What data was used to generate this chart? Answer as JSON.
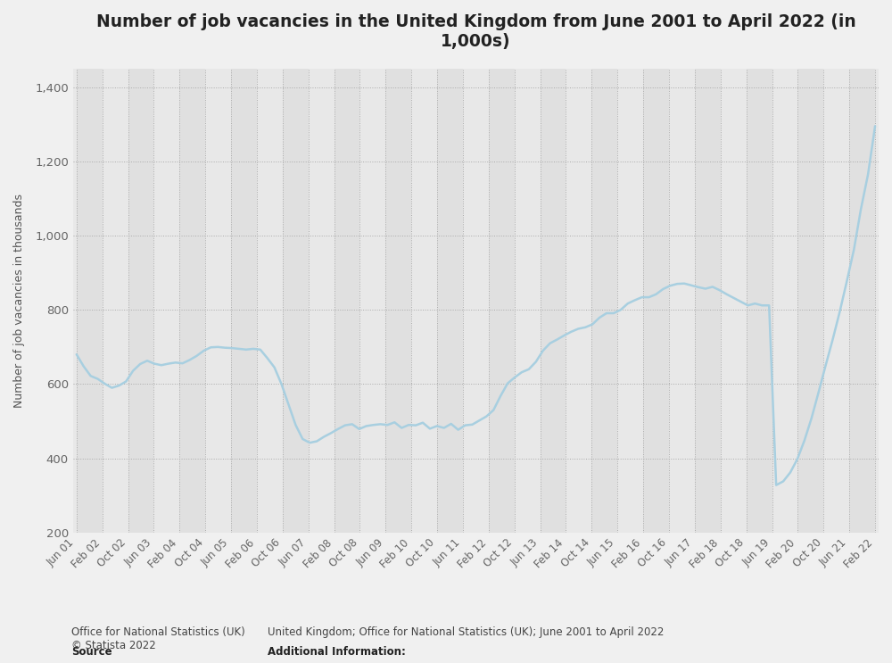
{
  "title": "Number of job vacancies in the United Kingdom from June 2001 to April 2022 (in\n1,000s)",
  "ylabel": "Number of job vacancies in thousands",
  "ylim": [
    200,
    1450
  ],
  "yticks": [
    200,
    400,
    600,
    800,
    1000,
    1200,
    1400
  ],
  "line_color": "#a8cfe0",
  "line_width": 1.8,
  "bg_color": "#f0f0f0",
  "plot_bg_color": "#e8e8e8",
  "source_label": "Source",
  "source_body": "Office for National Statistics (UK)\n© Statista 2022",
  "additional_label": "Additional Information:",
  "additional_body": "United Kingdom; Office for National Statistics (UK); June 2001 to April 2022",
  "x_labels": [
    "Jun 01",
    "Feb 02",
    "Oct 02",
    "Jun 03",
    "Feb 04",
    "Oct 04",
    "Jun 05",
    "Feb 06",
    "Oct 06",
    "Jun 07",
    "Feb 08",
    "Oct 08",
    "Jun 09",
    "Feb 10",
    "Oct 10",
    "Jun 11",
    "Feb 12",
    "Oct 12",
    "Jun 13",
    "Feb 14",
    "Oct 14",
    "Jun 15",
    "Feb 16",
    "Oct 16",
    "Jun 17",
    "Feb 18",
    "Oct 18",
    "Jun 19",
    "Feb 20",
    "Oct 20",
    "Jun 21",
    "Feb 22"
  ],
  "y_vals": [
    680,
    648,
    622,
    614,
    601,
    590,
    596,
    607,
    636,
    654,
    663,
    655,
    651,
    655,
    658,
    656,
    665,
    676,
    690,
    699,
    700,
    698,
    697,
    695,
    693,
    695,
    693,
    670,
    645,
    600,
    545,
    490,
    452,
    442,
    446,
    458,
    468,
    479,
    489,
    492,
    479,
    487,
    490,
    492,
    490,
    497,
    482,
    490,
    489,
    496,
    480,
    487,
    482,
    493,
    477,
    489,
    491,
    502,
    513,
    530,
    568,
    602,
    618,
    632,
    640,
    660,
    690,
    710,
    720,
    731,
    741,
    749,
    753,
    761,
    779,
    791,
    791,
    800,
    817,
    826,
    834,
    834,
    842,
    856,
    865,
    870,
    871,
    866,
    861,
    857,
    862,
    853,
    842,
    832,
    822,
    812,
    817,
    812,
    812,
    328,
    338,
    362,
    398,
    448,
    508,
    578,
    650,
    720,
    795,
    877,
    962,
    1072,
    1165,
    1295
  ]
}
